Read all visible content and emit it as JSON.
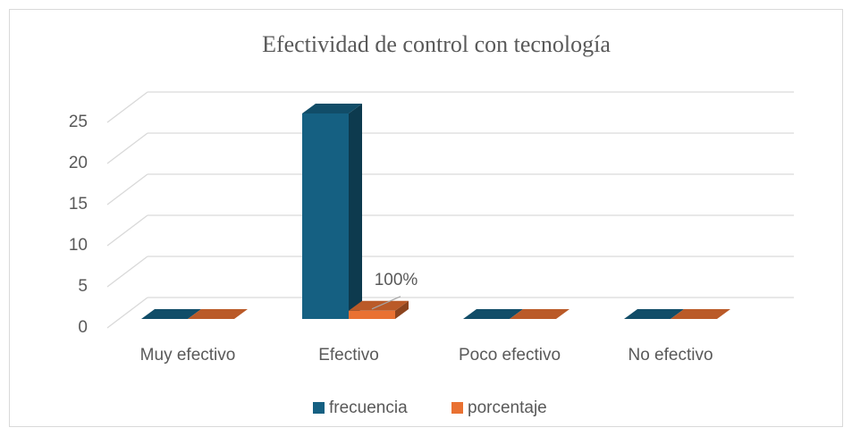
{
  "chart_data": {
    "type": "bar3d",
    "title": "Efectividad de control con tecnología",
    "categories": [
      "Muy efectivo",
      "Efectivo",
      "Poco efectivo",
      "No efectivo"
    ],
    "series": [
      {
        "name": "frecuencia",
        "color": "#156082",
        "values": [
          0,
          25,
          0,
          0
        ]
      },
      {
        "name": "porcentaje",
        "color": "#e97132",
        "values": [
          0,
          1,
          0,
          0
        ],
        "value_labels": [
          null,
          "100%",
          null,
          null
        ]
      }
    ],
    "ylim": [
      0,
      25
    ],
    "yticks": [
      0,
      5,
      10,
      15,
      20,
      25
    ],
    "grid": true,
    "legend": "bottom"
  }
}
